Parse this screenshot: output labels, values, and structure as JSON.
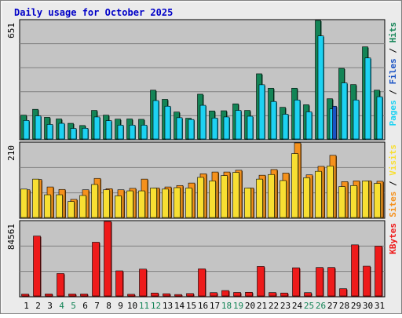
{
  "chart_data": {
    "type": "bar",
    "title": "Daily usage for October 2025",
    "days": [
      "1",
      "2",
      "3",
      "4",
      "5",
      "6",
      "7",
      "8",
      "9",
      "10",
      "11",
      "12",
      "13",
      "14",
      "15",
      "16",
      "17",
      "18",
      "19",
      "20",
      "21",
      "22",
      "23",
      "24",
      "25",
      "26",
      "27",
      "28",
      "29",
      "30",
      "31"
    ],
    "weekend_days": [
      "4",
      "5",
      "11",
      "12",
      "18",
      "19",
      "25",
      "26"
    ],
    "colors": {
      "hits": "#138456",
      "files": "#1dd2f2",
      "pages": "#1a53c4",
      "visits": "#f5911c",
      "sites": "#f8df32",
      "kbytes": "#ee1a1a",
      "weekend_label": "#138456",
      "weekday_label": "#000000",
      "title": "#0000c8",
      "plot_bg": "#c4c4c4",
      "frame_bg": "#ebebeb"
    },
    "panels": [
      {
        "key": "top",
        "max_label": "651",
        "ylim": [
          0,
          651
        ],
        "legend": [
          {
            "text": "Pages",
            "color": "#1dd2f2"
          },
          {
            "text": " / ",
            "color": "#000000"
          },
          {
            "text": "Files",
            "color": "#1a53c4"
          },
          {
            "text": " / ",
            "color": "#000000"
          },
          {
            "text": "Hits",
            "color": "#138456"
          }
        ],
        "series": [
          {
            "name": "Hits",
            "color": "#138456",
            "values": [
              131,
              163,
              119,
              110,
              86,
              74,
              157,
              131,
              109,
              110,
              108,
              268,
              218,
              148,
              114,
              246,
              154,
              155,
              193,
              157,
              358,
              279,
              174,
              279,
              188,
              651,
              221,
              388,
              299,
              506,
              268
            ]
          },
          {
            "name": "Files",
            "color": "#1dd2f2",
            "values": [
              102,
              127,
              80,
              86,
              58,
              59,
              121,
              101,
              76,
              76,
              76,
              211,
              180,
              117,
              107,
              185,
              115,
              121,
              157,
              125,
              298,
              206,
              136,
              214,
              149,
              566,
              165,
              308,
              214,
              445,
              232
            ]
          },
          {
            "name": "Pages",
            "color": "#1a53c4",
            "values": [
              0,
              0,
              0,
              0,
              0,
              0,
              0,
              0,
              0,
              0,
              0,
              0,
              0,
              0,
              0,
              0,
              0,
              0,
              0,
              0,
              0,
              0,
              0,
              0,
              0,
              0,
              180,
              0,
              0,
              0,
              0
            ]
          }
        ]
      },
      {
        "key": "middle",
        "max_label": "210",
        "ylim": [
          0,
          210
        ],
        "legend": [
          {
            "text": "Sites",
            "color": "#f5911c"
          },
          {
            "text": " / ",
            "color": "#000000"
          },
          {
            "text": "Visits",
            "color": "#f8df32"
          }
        ],
        "series": [
          {
            "name": "Visits",
            "color": "#f5911c",
            "values": [
              78,
              107,
              86,
              79,
              51,
              78,
              110,
              81,
              78,
              82,
              108,
              83,
              86,
              90,
              97,
              123,
              128,
              128,
              133,
              83,
              119,
              135,
              125,
              210,
              120,
              144,
              175,
              101,
              103,
              103,
              102
            ]
          },
          {
            "name": "Sites",
            "color": "#f8df32",
            "values": [
              80,
              108,
              64,
              64,
              45,
              62,
              93,
              78,
              61,
              75,
              75,
              83,
              80,
              84,
              83,
              113,
              103,
              118,
              127,
              83,
              108,
              121,
              104,
              180,
              112,
              130,
              145,
              87,
              90,
              103,
              96
            ]
          }
        ]
      },
      {
        "key": "bottom",
        "max_label": "84561",
        "ylim": [
          0,
          84561
        ],
        "legend": [
          {
            "text": "KBytes",
            "color": "#ee1a1a"
          }
        ],
        "series": [
          {
            "name": "KBytes",
            "color": "#ee1a1a",
            "values": [
              2200,
              68000,
              2400,
              25500,
              2300,
              2300,
              61000,
              84561,
              28500,
              2000,
              30500,
              3400,
              2600,
              1700,
              2800,
              30800,
              3800,
              6200,
              4000,
              4200,
              33500,
              3900,
              3400,
              32000,
              3800,
              32300,
              32300,
              8300,
              58000,
              33800,
              56500
            ]
          }
        ]
      }
    ]
  }
}
